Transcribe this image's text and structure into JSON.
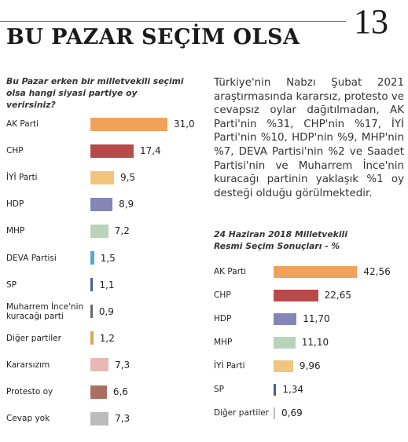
{
  "header": {
    "title": "BU PAZAR SEÇİM OLSA",
    "page_number": "13"
  },
  "paragraph": "Türkiye'nin Nabzı Şubat 2021 araştırmasında kararsız, protesto ve cevapsız oylar dağıtılmadan, AK Parti'nin %31, CHP'nin %17, İYİ Parti'nin %10, HDP'nin %9, MHP'nin %7, DEVA Partisi'nin %2 ve Saadet Partisi'nin ve Muharrem İnce'nin kuracağı partinin yaklaşık %1 oy desteği olduğu görülmektedir.",
  "chart_data": [
    {
      "type": "bar",
      "title": "Bu Pazar erken bir milletvekili seçimi olsa hangi siyasi partiye oy verirsiniz?",
      "categories": [
        "AK Parti",
        "CHP",
        "İYİ Parti",
        "HDP",
        "MHP",
        "DEVA Partisi",
        "SP",
        "Muharrem İnce'nin kuracağı parti",
        "Diğer partiler",
        "Kararsızım",
        "Protesto oy",
        "Cevap yok"
      ],
      "values": [
        31.0,
        17.4,
        9.5,
        8.9,
        7.2,
        1.5,
        1.1,
        0.9,
        1.2,
        7.3,
        6.6,
        7.3
      ],
      "value_labels": [
        "31,0",
        "17,4",
        "9,5",
        "8,9",
        "7,2",
        "1,5",
        "1,1",
        "0,9",
        "1,2",
        "7,3",
        "6,6",
        "7,3"
      ],
      "colors": [
        "#f0a25a",
        "#b94a4a",
        "#f2c57f",
        "#8585b8",
        "#b7d3b8",
        "#5aa5d8",
        "#4b5f8e",
        "#666666",
        "#d4a858",
        "#e8b8b8",
        "#a87060",
        "#bbbbbb"
      ]
    },
    {
      "type": "bar",
      "title": "24 Haziran 2018 Milletvekili Resmi Seçim Sonuçları - %",
      "categories": [
        "AK Parti",
        "CHP",
        "HDP",
        "MHP",
        "İYİ Parti",
        "SP",
        "Diğer partiler"
      ],
      "values": [
        42.56,
        22.65,
        11.7,
        11.1,
        9.96,
        1.34,
        0.69
      ],
      "value_labels": [
        "42,56",
        "22,65",
        "11,70",
        "11,10",
        "9,96",
        "1,34",
        "0,69"
      ],
      "colors": [
        "#f0a25a",
        "#b94a4a",
        "#8585b8",
        "#b7d3b8",
        "#f2c57f",
        "#4b5f8e",
        "#bbbbbb"
      ]
    }
  ]
}
